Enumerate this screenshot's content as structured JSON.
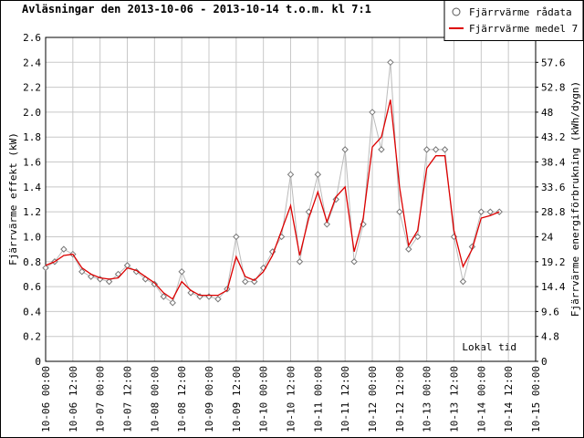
{
  "chart_data": {
    "type": "line",
    "title": "Avläsningar den 2013-10-06 - 2013-10-14 t.o.m. kl 7:1",
    "y_label": "Fjärrvärme effekt (kW)",
    "y2_label": "Fjärrvärme energiförbrukning (kWh/dygn)",
    "annotation": "Lokal tid",
    "legend": "top-right",
    "grid": true,
    "x": [
      "10-06 00:00",
      "10-06 04:00",
      "10-06 08:00",
      "10-06 12:00",
      "10-06 16:00",
      "10-06 20:00",
      "10-07 00:00",
      "10-07 04:00",
      "10-07 08:00",
      "10-07 12:00",
      "10-07 16:00",
      "10-07 20:00",
      "10-08 00:00",
      "10-08 04:00",
      "10-08 08:00",
      "10-08 12:00",
      "10-08 16:00",
      "10-08 20:00",
      "10-09 00:00",
      "10-09 04:00",
      "10-09 08:00",
      "10-09 12:00",
      "10-09 16:00",
      "10-09 20:00",
      "10-10 00:00",
      "10-10 04:00",
      "10-10 08:00",
      "10-10 12:00",
      "10-10 16:00",
      "10-10 20:00",
      "10-11 00:00",
      "10-11 04:00",
      "10-11 08:00",
      "10-11 12:00",
      "10-11 16:00",
      "10-11 20:00",
      "10-12 00:00",
      "10-12 04:00",
      "10-12 08:00",
      "10-12 12:00",
      "10-12 16:00",
      "10-12 20:00",
      "10-13 00:00",
      "10-13 04:00",
      "10-13 08:00",
      "10-13 12:00",
      "10-13 16:00",
      "10-13 20:00",
      "10-14 00:00",
      "10-14 04:00",
      "10-14 08:00"
    ],
    "series": [
      {
        "name": "Fjärrvärme rådata",
        "color": "#bbbbbb",
        "marker": "diamond",
        "values": [
          0.75,
          0.8,
          0.9,
          0.86,
          0.72,
          0.68,
          0.66,
          0.64,
          0.7,
          0.77,
          0.72,
          0.66,
          0.62,
          0.52,
          0.47,
          0.72,
          0.55,
          0.52,
          0.52,
          0.5,
          0.58,
          1.0,
          0.64,
          0.64,
          0.75,
          0.88,
          1.0,
          1.5,
          0.8,
          1.2,
          1.5,
          1.1,
          1.3,
          1.7,
          0.8,
          1.1,
          2.0,
          1.7,
          2.4,
          1.2,
          0.9,
          1.0,
          1.7,
          1.7,
          1.7,
          1.0,
          0.64,
          0.92,
          1.2,
          1.2,
          1.2
        ]
      },
      {
        "name": "Fjärrvärme medel 7",
        "color": "#dd0000",
        "values": [
          0.77,
          0.8,
          0.85,
          0.86,
          0.75,
          0.7,
          0.67,
          0.66,
          0.67,
          0.75,
          0.73,
          0.68,
          0.63,
          0.55,
          0.5,
          0.64,
          0.57,
          0.53,
          0.53,
          0.53,
          0.57,
          0.84,
          0.68,
          0.65,
          0.72,
          0.85,
          1.05,
          1.25,
          0.85,
          1.15,
          1.36,
          1.12,
          1.32,
          1.4,
          0.88,
          1.15,
          1.72,
          1.8,
          2.1,
          1.4,
          0.93,
          1.05,
          1.55,
          1.65,
          1.65,
          1.05,
          0.76,
          0.9,
          1.15,
          1.17,
          1.2
        ]
      }
    ],
    "xlim": [
      "10-06 00:00",
      "10-15 00:00"
    ],
    "xticks": [
      "10-06 00:00",
      "10-06 12:00",
      "10-07 00:00",
      "10-07 12:00",
      "10-08 00:00",
      "10-08 12:00",
      "10-09 00:00",
      "10-09 12:00",
      "10-10 00:00",
      "10-10 12:00",
      "10-11 00:00",
      "10-11 12:00",
      "10-12 00:00",
      "10-12 12:00",
      "10-13 00:00",
      "10-13 12:00",
      "10-14 00:00",
      "10-14 12:00",
      "10-15 00:00"
    ],
    "ylim": [
      0,
      2.6
    ],
    "yticks": [
      0,
      0.2,
      0.4,
      0.6,
      0.8,
      {
        "value": 1,
        "label": "1.0"
      },
      1.2,
      1.4,
      1.6,
      1.8,
      {
        "value": 2,
        "label": "2.0"
      },
      2.2,
      2.4,
      2.6
    ],
    "y2lim": [
      0,
      62.4
    ],
    "y2ticks": [
      0,
      4.8,
      9.6,
      14.4,
      19.2,
      24,
      28.8,
      33.6,
      38.4,
      43.2,
      48,
      52.8,
      57.6
    ]
  }
}
